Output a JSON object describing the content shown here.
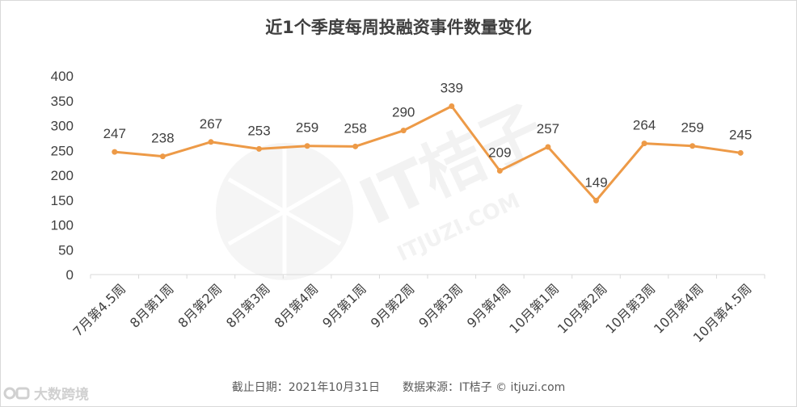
{
  "footer": {
    "date_text": "截止日期：2021年10月31日",
    "source_text": "数据来源：IT桔子 © itjuzi.com"
  },
  "watermark": {
    "brand_text": "IT桔子",
    "url_text": "ITJUZI.COM",
    "corner_text": "大数跨境"
  },
  "colors": {
    "line": "#ed9a47",
    "axis": "#d9d9d9",
    "text": "#404040"
  },
  "chart_data": {
    "type": "line",
    "title": "近1个季度每周投融资事件数量变化",
    "categories": [
      "7月第4.5周",
      "8月第1周",
      "8月第2周",
      "8月第3周",
      "8月第4周",
      "9月第1周",
      "9月第2周",
      "9月第3周",
      "9月第4周",
      "10月第1周",
      "10月第2周",
      "10月第3周",
      "10月第4周",
      "10月第4.5周"
    ],
    "values": [
      247,
      238,
      267,
      253,
      259,
      258,
      290,
      339,
      209,
      257,
      149,
      264,
      259,
      245
    ],
    "ylim": [
      0,
      400
    ],
    "yticks": [
      0,
      50,
      100,
      150,
      200,
      250,
      300,
      350,
      400
    ],
    "xlabel": "",
    "ylabel": "",
    "grid": false,
    "legend": "none",
    "data_labels": true
  }
}
